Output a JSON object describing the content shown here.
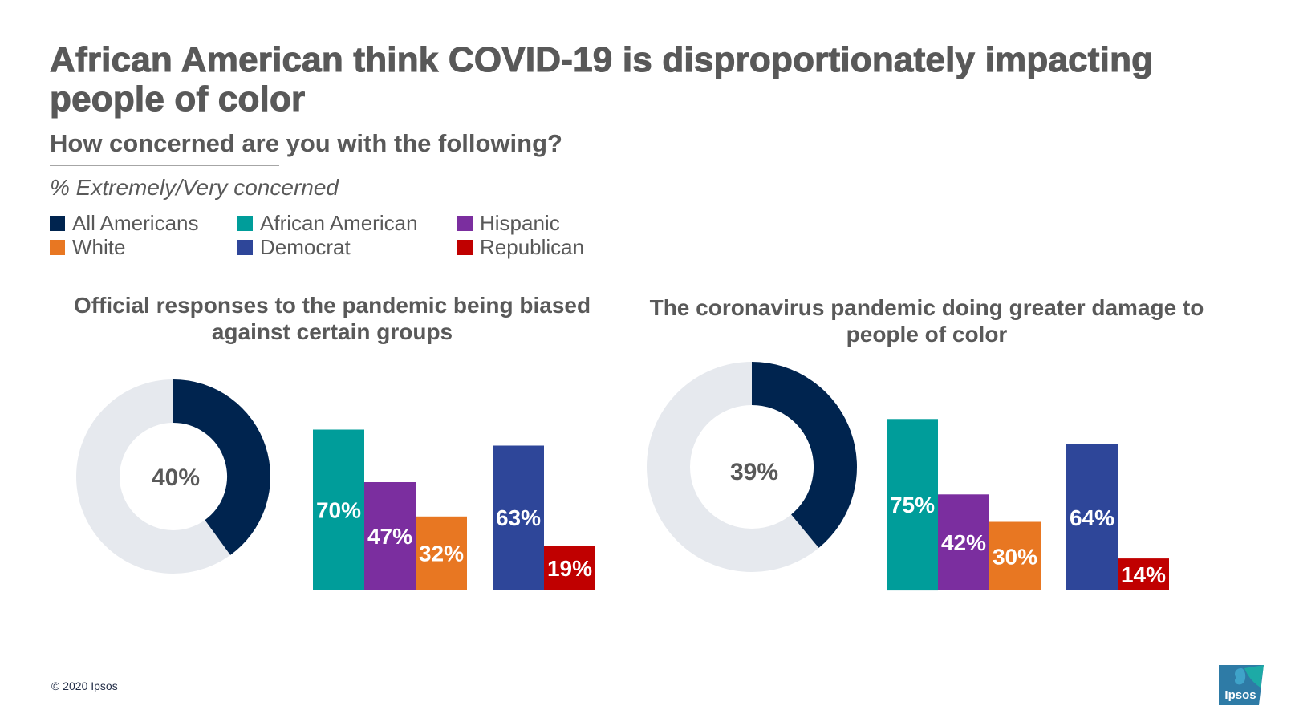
{
  "title": "African American think COVID-19 is disproportionately impacting people of color",
  "question": "How concerned are you with the following?",
  "measure": "% Extremely/Very concerned",
  "colors": {
    "all_americans": "#00244F",
    "african_american": "#009D9A",
    "hispanic": "#7B2E9F",
    "white": "#E87722",
    "democrat": "#2E4699",
    "republican": "#C00000",
    "donut_track": "#E6E9EE"
  },
  "legend": [
    {
      "label": "All Americans",
      "color": "#00244F"
    },
    {
      "label": "African American",
      "color": "#009D9A"
    },
    {
      "label": "Hispanic",
      "color": "#7B2E9F"
    },
    {
      "label": "White",
      "color": "#E87722"
    },
    {
      "label": "Democrat",
      "color": "#2E4699"
    },
    {
      "label": "Republican",
      "color": "#C00000"
    }
  ],
  "chart_data": [
    {
      "type": "bar",
      "title": "Official responses to the pandemic being biased against certain groups",
      "donut": {
        "label": "All Americans",
        "value": 40,
        "display": "40%"
      },
      "groups": [
        {
          "categories": [
            "African American",
            "Hispanic",
            "White"
          ],
          "values": [
            70,
            47,
            32
          ],
          "labels": [
            "70%",
            "47%",
            "32%"
          ]
        },
        {
          "categories": [
            "Democrat",
            "Republican"
          ],
          "values": [
            63,
            19
          ],
          "labels": [
            "63%",
            "19%"
          ]
        }
      ],
      "ylim": [
        0,
        100
      ]
    },
    {
      "type": "bar",
      "title": "The coronavirus pandemic doing greater damage to people of color",
      "donut": {
        "label": "All Americans",
        "value": 39,
        "display": "39%"
      },
      "groups": [
        {
          "categories": [
            "African American",
            "Hispanic",
            "White"
          ],
          "values": [
            75,
            42,
            30
          ],
          "labels": [
            "75%",
            "42%",
            "30%"
          ]
        },
        {
          "categories": [
            "Democrat",
            "Republican"
          ],
          "values": [
            64,
            14
          ],
          "labels": [
            "64%",
            "14%"
          ]
        }
      ],
      "ylim": [
        0,
        100
      ]
    }
  ],
  "footer": {
    "copyright": "© 2020 Ipsos"
  },
  "logo": {
    "text": "Ipsos"
  }
}
